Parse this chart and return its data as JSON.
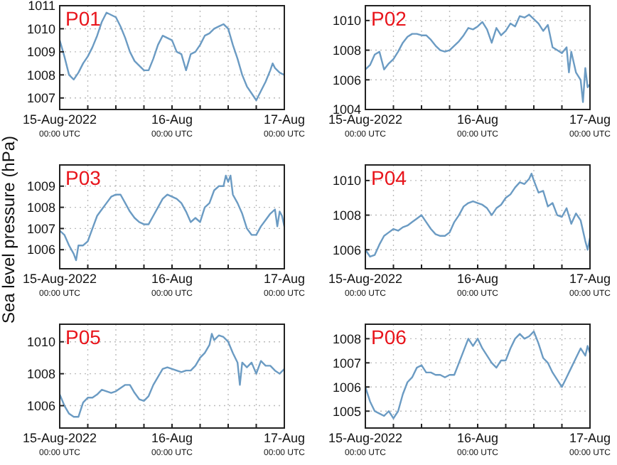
{
  "chart_data": [
    {
      "type": "line",
      "title": "P01",
      "xlim": [
        "2022-08-15T00:00",
        "2022-08-17T00:00"
      ],
      "ylim": [
        1006.5,
        1011
      ],
      "yticks": [
        1007,
        1008,
        1009,
        1010,
        1011
      ],
      "grid": true,
      "marker": "none",
      "line_style": "solid",
      "xticks": [
        {
          "value": "2022-08-15T00:00",
          "label": "15-Aug-2022\n00:00 UTC"
        },
        {
          "value": "2022-08-15T06:00",
          "label": null
        },
        {
          "value": "2022-08-15T12:00",
          "label": null
        },
        {
          "value": "2022-08-15T18:00",
          "label": null
        },
        {
          "value": "2022-08-16T00:00",
          "label": "16-Aug\n00:00 UTC"
        },
        {
          "value": "2022-08-16T06:00",
          "label": null
        },
        {
          "value": "2022-08-16T12:00",
          "label": null
        },
        {
          "value": "2022-08-16T18:00",
          "label": null
        },
        {
          "value": "2022-08-17T00:00",
          "label": "17-Aug\n00:00 UTC"
        }
      ],
      "series": [
        {
          "color": "#6b9bc3",
          "x": [
            "2022-08-15T00:00",
            "2022-08-15T01:00",
            "2022-08-15T02:00",
            "2022-08-15T03:00",
            "2022-08-15T04:00",
            "2022-08-15T05:00",
            "2022-08-15T06:00",
            "2022-08-15T07:00",
            "2022-08-15T08:00",
            "2022-08-15T09:00",
            "2022-08-15T10:00",
            "2022-08-15T11:00",
            "2022-08-15T12:00",
            "2022-08-15T13:00",
            "2022-08-15T14:00",
            "2022-08-15T15:00",
            "2022-08-15T16:00",
            "2022-08-15T17:00",
            "2022-08-15T18:00",
            "2022-08-15T19:00",
            "2022-08-15T20:00",
            "2022-08-15T21:00",
            "2022-08-15T22:00",
            "2022-08-15T23:00",
            "2022-08-16T00:00",
            "2022-08-16T01:00",
            "2022-08-16T02:00",
            "2022-08-16T03:00",
            "2022-08-16T04:00",
            "2022-08-16T05:00",
            "2022-08-16T06:00",
            "2022-08-16T07:00",
            "2022-08-16T08:00",
            "2022-08-16T09:00",
            "2022-08-16T10:00",
            "2022-08-16T11:00",
            "2022-08-16T12:00",
            "2022-08-16T13:00",
            "2022-08-16T14:00",
            "2022-08-16T15:00",
            "2022-08-16T16:00",
            "2022-08-16T17:00",
            "2022-08-16T18:00",
            "2022-08-16T19:00",
            "2022-08-16T20:00",
            "2022-08-16T21:00",
            "2022-08-16T21:30",
            "2022-08-16T22:00",
            "2022-08-16T23:00",
            "2022-08-17T00:00"
          ],
          "values": [
            1009.5,
            1008.8,
            1008.0,
            1007.8,
            1008.1,
            1008.5,
            1008.8,
            1009.2,
            1009.7,
            1010.3,
            1010.7,
            1010.6,
            1010.5,
            1010.1,
            1009.6,
            1009.0,
            1008.6,
            1008.4,
            1008.2,
            1008.2,
            1008.7,
            1009.3,
            1009.7,
            1009.6,
            1009.5,
            1009.0,
            1008.9,
            1008.2,
            1008.9,
            1009.0,
            1009.3,
            1009.7,
            1009.8,
            1010.0,
            1010.1,
            1010.2,
            1010.0,
            1009.3,
            1008.7,
            1008.0,
            1007.5,
            1007.2,
            1006.9,
            1007.3,
            1007.7,
            1008.2,
            1008.5,
            1008.3,
            1008.1,
            1008.0
          ]
        }
      ]
    },
    {
      "type": "line",
      "title": "P02",
      "xlim": [
        "2022-08-15T00:00",
        "2022-08-17T00:00"
      ],
      "ylim": [
        1004,
        1011
      ],
      "yticks": [
        1004,
        1006,
        1008,
        1010
      ],
      "grid": true,
      "marker": "none",
      "line_style": "solid",
      "xticks": [
        {
          "value": "2022-08-15T00:00",
          "label": "15-Aug-2022\n00:00 UTC"
        },
        {
          "value": "2022-08-15T06:00",
          "label": null
        },
        {
          "value": "2022-08-15T12:00",
          "label": null
        },
        {
          "value": "2022-08-15T18:00",
          "label": null
        },
        {
          "value": "2022-08-16T00:00",
          "label": "16-Aug\n00:00 UTC"
        },
        {
          "value": "2022-08-16T06:00",
          "label": null
        },
        {
          "value": "2022-08-16T12:00",
          "label": null
        },
        {
          "value": "2022-08-16T18:00",
          "label": null
        },
        {
          "value": "2022-08-17T00:00",
          "label": "17-Aug\n00:00 UTC"
        }
      ],
      "series": [
        {
          "color": "#6b9bc3",
          "x": [
            "2022-08-15T00:00",
            "2022-08-15T01:00",
            "2022-08-15T02:00",
            "2022-08-15T03:00",
            "2022-08-15T04:00",
            "2022-08-15T05:00",
            "2022-08-15T06:00",
            "2022-08-15T07:00",
            "2022-08-15T08:00",
            "2022-08-15T09:00",
            "2022-08-15T10:00",
            "2022-08-15T11:00",
            "2022-08-15T12:00",
            "2022-08-15T13:00",
            "2022-08-15T14:00",
            "2022-08-15T15:00",
            "2022-08-15T16:00",
            "2022-08-15T17:00",
            "2022-08-15T18:00",
            "2022-08-15T19:00",
            "2022-08-15T20:00",
            "2022-08-15T21:00",
            "2022-08-15T22:00",
            "2022-08-15T23:00",
            "2022-08-16T00:00",
            "2022-08-16T01:00",
            "2022-08-16T02:00",
            "2022-08-16T03:00",
            "2022-08-16T04:00",
            "2022-08-16T05:00",
            "2022-08-16T06:00",
            "2022-08-16T07:00",
            "2022-08-16T08:00",
            "2022-08-16T09:00",
            "2022-08-16T10:00",
            "2022-08-16T11:00",
            "2022-08-16T12:00",
            "2022-08-16T13:00",
            "2022-08-16T14:00",
            "2022-08-16T15:00",
            "2022-08-16T16:00",
            "2022-08-16T17:00",
            "2022-08-16T18:00",
            "2022-08-16T19:00",
            "2022-08-16T19:30",
            "2022-08-16T20:00",
            "2022-08-16T21:00",
            "2022-08-16T22:00",
            "2022-08-16T22:30",
            "2022-08-16T23:00",
            "2022-08-16T23:30",
            "2022-08-17T00:00"
          ],
          "values": [
            1006.7,
            1007.0,
            1007.7,
            1007.9,
            1006.7,
            1007.1,
            1007.4,
            1007.9,
            1008.5,
            1008.9,
            1009.1,
            1009.1,
            1009.0,
            1009.0,
            1008.7,
            1008.3,
            1008.0,
            1007.9,
            1008.0,
            1008.3,
            1008.6,
            1009.0,
            1009.5,
            1009.4,
            1009.6,
            1009.9,
            1009.4,
            1008.5,
            1009.5,
            1009.0,
            1009.3,
            1009.8,
            1009.6,
            1010.3,
            1010.2,
            1010.4,
            1010.1,
            1009.8,
            1009.3,
            1009.7,
            1008.2,
            1008.0,
            1007.8,
            1008.2,
            1006.5,
            1007.9,
            1006.5,
            1006.0,
            1004.5,
            1006.8,
            1005.5,
            1005.7
          ]
        }
      ]
    },
    {
      "type": "line",
      "title": "P03",
      "ylabel": "Sea level pressure (hPa)",
      "xlim": [
        "2022-08-15T00:00",
        "2022-08-17T00:00"
      ],
      "ylim": [
        1005.1,
        1010
      ],
      "yticks": [
        1006,
        1007,
        1008,
        1009
      ],
      "grid": true,
      "marker": "none",
      "line_style": "solid",
      "xticks": [
        {
          "value": "2022-08-15T00:00",
          "label": "15-Aug-2022\n00:00 UTC"
        },
        {
          "value": "2022-08-15T06:00",
          "label": null
        },
        {
          "value": "2022-08-15T12:00",
          "label": null
        },
        {
          "value": "2022-08-15T18:00",
          "label": null
        },
        {
          "value": "2022-08-16T00:00",
          "label": "16-Aug\n00:00 UTC"
        },
        {
          "value": "2022-08-16T06:00",
          "label": null
        },
        {
          "value": "2022-08-16T12:00",
          "label": null
        },
        {
          "value": "2022-08-16T18:00",
          "label": null
        },
        {
          "value": "2022-08-17T00:00",
          "label": "17-Aug\n00:00 UTC"
        }
      ],
      "series": [
        {
          "color": "#6b9bc3",
          "x": [
            "2022-08-15T00:00",
            "2022-08-15T01:00",
            "2022-08-15T02:00",
            "2022-08-15T03:00",
            "2022-08-15T03:30",
            "2022-08-15T04:00",
            "2022-08-15T05:00",
            "2022-08-15T06:00",
            "2022-08-15T07:00",
            "2022-08-15T08:00",
            "2022-08-15T09:00",
            "2022-08-15T10:00",
            "2022-08-15T11:00",
            "2022-08-15T12:00",
            "2022-08-15T13:00",
            "2022-08-15T14:00",
            "2022-08-15T15:00",
            "2022-08-15T16:00",
            "2022-08-15T17:00",
            "2022-08-15T18:00",
            "2022-08-15T19:00",
            "2022-08-15T20:00",
            "2022-08-15T21:00",
            "2022-08-15T22:00",
            "2022-08-15T23:00",
            "2022-08-16T00:00",
            "2022-08-16T01:00",
            "2022-08-16T02:00",
            "2022-08-16T03:00",
            "2022-08-16T04:00",
            "2022-08-16T05:00",
            "2022-08-16T06:00",
            "2022-08-16T07:00",
            "2022-08-16T08:00",
            "2022-08-16T09:00",
            "2022-08-16T10:00",
            "2022-08-16T11:00",
            "2022-08-16T11:30",
            "2022-08-16T12:00",
            "2022-08-16T12:30",
            "2022-08-16T13:00",
            "2022-08-16T14:00",
            "2022-08-16T15:00",
            "2022-08-16T16:00",
            "2022-08-16T17:00",
            "2022-08-16T18:00",
            "2022-08-16T19:00",
            "2022-08-16T20:00",
            "2022-08-16T21:00",
            "2022-08-16T22:00",
            "2022-08-16T22:30",
            "2022-08-16T23:00",
            "2022-08-16T23:30",
            "2022-08-17T00:00"
          ],
          "values": [
            1006.9,
            1006.7,
            1006.2,
            1005.8,
            1005.5,
            1006.2,
            1006.2,
            1006.4,
            1007.0,
            1007.6,
            1007.9,
            1008.2,
            1008.5,
            1008.6,
            1008.6,
            1008.2,
            1007.8,
            1007.5,
            1007.3,
            1007.2,
            1007.2,
            1007.6,
            1008.0,
            1008.4,
            1008.6,
            1008.5,
            1008.4,
            1008.2,
            1007.8,
            1007.3,
            1007.5,
            1007.3,
            1008.0,
            1008.2,
            1008.8,
            1009.0,
            1009.0,
            1009.5,
            1009.2,
            1009.5,
            1008.6,
            1008.2,
            1007.7,
            1007.0,
            1006.7,
            1006.7,
            1007.1,
            1007.4,
            1007.7,
            1007.9,
            1007.1,
            1007.8,
            1007.6,
            1007.1
          ]
        }
      ]
    },
    {
      "type": "line",
      "title": "P04",
      "xlim": [
        "2022-08-15T00:00",
        "2022-08-17T00:00"
      ],
      "ylim": [
        1004.9,
        1010.9
      ],
      "yticks": [
        1006,
        1008,
        1010
      ],
      "grid": true,
      "marker": "none",
      "line_style": "solid",
      "xticks": [
        {
          "value": "2022-08-15T00:00",
          "label": "15-Aug-2022\n00:00 UTC"
        },
        {
          "value": "2022-08-15T06:00",
          "label": null
        },
        {
          "value": "2022-08-15T12:00",
          "label": null
        },
        {
          "value": "2022-08-15T18:00",
          "label": null
        },
        {
          "value": "2022-08-16T00:00",
          "label": "16-Aug\n00:00 UTC"
        },
        {
          "value": "2022-08-16T06:00",
          "label": null
        },
        {
          "value": "2022-08-16T12:00",
          "label": null
        },
        {
          "value": "2022-08-16T18:00",
          "label": null
        },
        {
          "value": "2022-08-17T00:00",
          "label": "17-Aug\n00:00 UTC"
        }
      ],
      "series": [
        {
          "color": "#6b9bc3",
          "x": [
            "2022-08-15T00:00",
            "2022-08-15T01:00",
            "2022-08-15T02:00",
            "2022-08-15T03:00",
            "2022-08-15T04:00",
            "2022-08-15T05:00",
            "2022-08-15T06:00",
            "2022-08-15T07:00",
            "2022-08-15T08:00",
            "2022-08-15T09:00",
            "2022-08-15T10:00",
            "2022-08-15T11:00",
            "2022-08-15T12:00",
            "2022-08-15T13:00",
            "2022-08-15T14:00",
            "2022-08-15T15:00",
            "2022-08-15T16:00",
            "2022-08-15T17:00",
            "2022-08-15T18:00",
            "2022-08-15T19:00",
            "2022-08-15T20:00",
            "2022-08-15T21:00",
            "2022-08-15T22:00",
            "2022-08-15T23:00",
            "2022-08-16T00:00",
            "2022-08-16T01:00",
            "2022-08-16T02:00",
            "2022-08-16T03:00",
            "2022-08-16T04:00",
            "2022-08-16T05:00",
            "2022-08-16T06:00",
            "2022-08-16T07:00",
            "2022-08-16T08:00",
            "2022-08-16T09:00",
            "2022-08-16T10:00",
            "2022-08-16T11:00",
            "2022-08-16T11:30",
            "2022-08-16T12:00",
            "2022-08-16T13:00",
            "2022-08-16T14:00",
            "2022-08-16T15:00",
            "2022-08-16T16:00",
            "2022-08-16T17:00",
            "2022-08-16T18:00",
            "2022-08-16T19:00",
            "2022-08-16T20:00",
            "2022-08-16T21:00",
            "2022-08-16T21:30",
            "2022-08-16T22:00",
            "2022-08-16T23:00",
            "2022-08-16T23:30",
            "2022-08-17T00:00"
          ],
          "values": [
            1006.0,
            1005.6,
            1005.7,
            1006.3,
            1006.8,
            1007.0,
            1007.2,
            1007.1,
            1007.3,
            1007.4,
            1007.6,
            1007.8,
            1008.0,
            1007.6,
            1007.2,
            1006.9,
            1006.8,
            1006.8,
            1007.0,
            1007.6,
            1008.0,
            1008.5,
            1008.7,
            1008.8,
            1008.7,
            1008.6,
            1008.4,
            1008.0,
            1008.4,
            1008.6,
            1009.0,
            1009.2,
            1009.6,
            1009.9,
            1009.8,
            1010.1,
            1010.4,
            1010.0,
            1009.3,
            1009.4,
            1008.5,
            1008.7,
            1008.0,
            1007.9,
            1008.4,
            1007.5,
            1008.1,
            1007.9,
            1007.7,
            1006.5,
            1006.0,
            1006.7
          ]
        }
      ]
    },
    {
      "type": "line",
      "title": "P05",
      "xlim": [
        "2022-08-15T00:00",
        "2022-08-17T00:00"
      ],
      "ylim": [
        1004.6,
        1011.1
      ],
      "yticks": [
        1006,
        1008,
        1010
      ],
      "grid": true,
      "marker": "none",
      "line_style": "solid",
      "xticks": [
        {
          "value": "2022-08-15T00:00",
          "label": "15-Aug-2022\n00:00 UTC"
        },
        {
          "value": "2022-08-15T06:00",
          "label": null
        },
        {
          "value": "2022-08-15T12:00",
          "label": null
        },
        {
          "value": "2022-08-15T18:00",
          "label": null
        },
        {
          "value": "2022-08-16T00:00",
          "label": "16-Aug\n00:00 UTC"
        },
        {
          "value": "2022-08-16T06:00",
          "label": null
        },
        {
          "value": "2022-08-16T12:00",
          "label": null
        },
        {
          "value": "2022-08-16T18:00",
          "label": null
        },
        {
          "value": "2022-08-17T00:00",
          "label": "17-Aug\n00:00 UTC"
        }
      ],
      "series": [
        {
          "color": "#6b9bc3",
          "x": [
            "2022-08-15T00:00",
            "2022-08-15T01:00",
            "2022-08-15T02:00",
            "2022-08-15T03:00",
            "2022-08-15T04:00",
            "2022-08-15T05:00",
            "2022-08-15T06:00",
            "2022-08-15T07:00",
            "2022-08-15T08:00",
            "2022-08-15T09:00",
            "2022-08-15T10:00",
            "2022-08-15T11:00",
            "2022-08-15T12:00",
            "2022-08-15T13:00",
            "2022-08-15T14:00",
            "2022-08-15T15:00",
            "2022-08-15T16:00",
            "2022-08-15T17:00",
            "2022-08-15T18:00",
            "2022-08-15T19:00",
            "2022-08-15T20:00",
            "2022-08-15T21:00",
            "2022-08-15T22:00",
            "2022-08-15T23:00",
            "2022-08-16T00:00",
            "2022-08-16T01:00",
            "2022-08-16T02:00",
            "2022-08-16T03:00",
            "2022-08-16T04:00",
            "2022-08-16T05:00",
            "2022-08-16T06:00",
            "2022-08-16T07:00",
            "2022-08-16T08:00",
            "2022-08-16T08:30",
            "2022-08-16T09:00",
            "2022-08-16T10:00",
            "2022-08-16T11:00",
            "2022-08-16T12:00",
            "2022-08-16T13:00",
            "2022-08-16T14:00",
            "2022-08-16T14:30",
            "2022-08-16T15:00",
            "2022-08-16T16:00",
            "2022-08-16T17:00",
            "2022-08-16T18:00",
            "2022-08-16T19:00",
            "2022-08-16T20:00",
            "2022-08-16T21:00",
            "2022-08-16T22:00",
            "2022-08-16T23:00",
            "2022-08-17T00:00"
          ],
          "values": [
            1006.7,
            1006.0,
            1005.5,
            1005.3,
            1005.3,
            1006.2,
            1006.5,
            1006.5,
            1006.7,
            1007.0,
            1006.9,
            1006.8,
            1006.9,
            1007.1,
            1007.3,
            1007.3,
            1006.8,
            1006.4,
            1006.3,
            1006.6,
            1007.3,
            1007.8,
            1008.3,
            1008.4,
            1008.3,
            1008.2,
            1008.1,
            1008.2,
            1008.2,
            1008.5,
            1009.0,
            1009.3,
            1009.8,
            1010.5,
            1010.1,
            1010.4,
            1010.3,
            1010.0,
            1009.3,
            1008.7,
            1007.3,
            1008.7,
            1008.4,
            1008.7,
            1008.0,
            1008.8,
            1008.5,
            1008.5,
            1008.2,
            1008.0,
            1008.3
          ]
        }
      ]
    },
    {
      "type": "line",
      "title": "P06",
      "xlim": [
        "2022-08-15T00:00",
        "2022-08-17T00:00"
      ],
      "ylim": [
        1004.3,
        1008.6
      ],
      "yticks": [
        1005,
        1006,
        1007,
        1008
      ],
      "grid": true,
      "marker": "none",
      "line_style": "solid",
      "xticks": [
        {
          "value": "2022-08-15T00:00",
          "label": "15-Aug-2022\n00:00 UTC"
        },
        {
          "value": "2022-08-15T06:00",
          "label": null
        },
        {
          "value": "2022-08-15T12:00",
          "label": null
        },
        {
          "value": "2022-08-15T18:00",
          "label": null
        },
        {
          "value": "2022-08-16T00:00",
          "label": "16-Aug\n00:00 UTC"
        },
        {
          "value": "2022-08-16T06:00",
          "label": null
        },
        {
          "value": "2022-08-16T12:00",
          "label": null
        },
        {
          "value": "2022-08-16T18:00",
          "label": null
        },
        {
          "value": "2022-08-17T00:00",
          "label": "17-Aug\n00:00 UTC"
        }
      ],
      "series": [
        {
          "color": "#6b9bc3",
          "x": [
            "2022-08-15T00:00",
            "2022-08-15T01:00",
            "2022-08-15T02:00",
            "2022-08-15T03:00",
            "2022-08-15T04:00",
            "2022-08-15T05:00",
            "2022-08-15T06:00",
            "2022-08-15T07:00",
            "2022-08-15T08:00",
            "2022-08-15T09:00",
            "2022-08-15T10:00",
            "2022-08-15T11:00",
            "2022-08-15T12:00",
            "2022-08-15T13:00",
            "2022-08-15T14:00",
            "2022-08-15T15:00",
            "2022-08-15T16:00",
            "2022-08-15T17:00",
            "2022-08-15T18:00",
            "2022-08-15T19:00",
            "2022-08-15T20:00",
            "2022-08-15T21:00",
            "2022-08-15T22:00",
            "2022-08-15T23:00",
            "2022-08-16T00:00",
            "2022-08-16T01:00",
            "2022-08-16T02:00",
            "2022-08-16T03:00",
            "2022-08-16T04:00",
            "2022-08-16T05:00",
            "2022-08-16T06:00",
            "2022-08-16T07:00",
            "2022-08-16T08:00",
            "2022-08-16T09:00",
            "2022-08-16T10:00",
            "2022-08-16T11:00",
            "2022-08-16T12:00",
            "2022-08-16T13:00",
            "2022-08-16T14:00",
            "2022-08-16T15:00",
            "2022-08-16T16:00",
            "2022-08-16T17:00",
            "2022-08-16T18:00",
            "2022-08-16T19:00",
            "2022-08-16T20:00",
            "2022-08-16T21:00",
            "2022-08-16T22:00",
            "2022-08-16T23:00",
            "2022-08-16T23:30",
            "2022-08-17T00:00"
          ],
          "values": [
            1006.0,
            1005.4,
            1005.0,
            1004.9,
            1004.8,
            1005.0,
            1004.7,
            1005.0,
            1005.7,
            1006.2,
            1006.4,
            1006.8,
            1006.9,
            1006.6,
            1006.6,
            1006.5,
            1006.5,
            1006.4,
            1006.5,
            1006.5,
            1007.0,
            1007.5,
            1008.0,
            1007.7,
            1008.0,
            1007.6,
            1007.3,
            1007.0,
            1006.8,
            1007.1,
            1007.1,
            1007.6,
            1008.0,
            1008.2,
            1008.0,
            1008.1,
            1008.3,
            1007.8,
            1007.2,
            1007.0,
            1006.6,
            1006.3,
            1006.0,
            1006.4,
            1006.8,
            1007.2,
            1007.6,
            1007.3,
            1007.7,
            1007.4
          ]
        }
      ]
    }
  ]
}
